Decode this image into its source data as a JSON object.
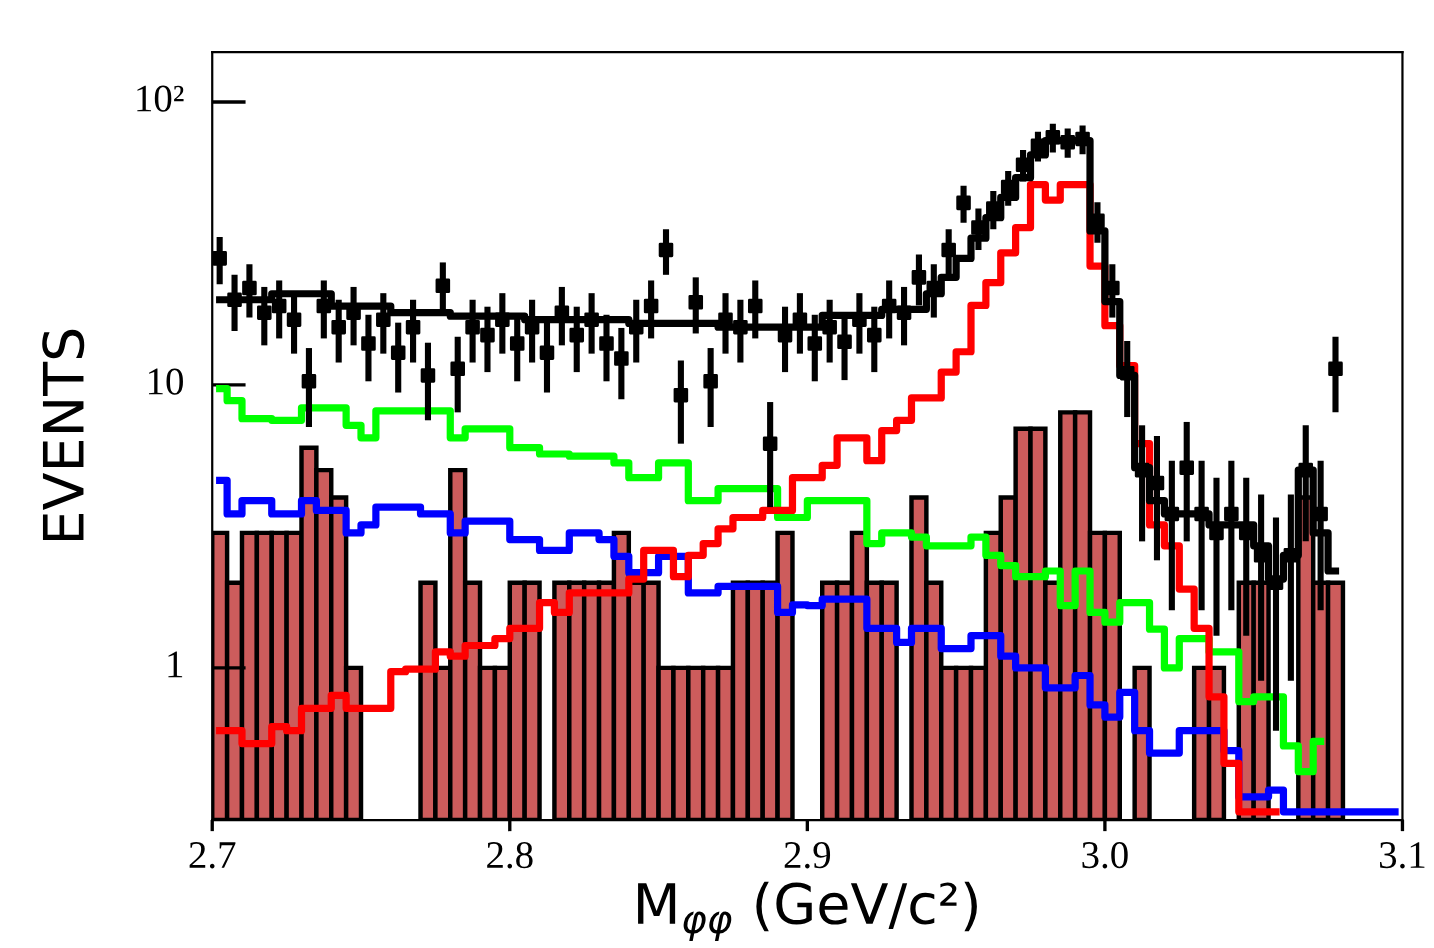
{
  "chart_data": {
    "type": "histogram",
    "xlabel": "M$_{φφ}$ (GeV/c²)",
    "ylabel": "EVENTS",
    "bins": [
      2.7,
      2.705,
      2.71,
      2.715,
      2.72,
      2.725,
      2.73,
      2.735,
      2.74,
      2.745,
      2.75,
      2.755,
      2.76,
      2.765,
      2.77,
      2.775,
      2.78,
      2.785,
      2.79,
      2.795,
      2.8,
      2.805,
      2.81,
      2.815,
      2.82,
      2.825,
      2.83,
      2.835,
      2.84,
      2.845,
      2.85,
      2.855,
      2.86,
      2.865,
      2.87,
      2.875,
      2.88,
      2.885,
      2.89,
      2.895,
      2.9,
      2.905,
      2.91,
      2.915,
      2.92,
      2.925,
      2.93,
      2.935,
      2.94,
      2.945,
      2.95,
      2.955,
      2.96,
      2.965,
      2.97,
      2.975,
      2.98,
      2.985,
      2.99,
      2.995,
      3.0,
      3.005,
      3.01,
      3.015,
      3.02,
      3.025,
      3.03,
      3.035,
      3.04,
      3.045,
      3.05,
      3.055,
      3.06,
      3.065,
      3.07,
      3.075,
      3.08,
      3.085,
      3.09,
      3.095,
      3.1
    ],
    "series": [
      {
        "color": "#cd5c5c",
        "values": [
          3,
          2,
          3,
          3,
          3,
          3,
          6,
          5,
          4,
          1,
          null,
          null,
          null,
          null,
          2,
          1,
          5,
          2,
          1,
          1,
          2,
          2,
          null,
          2,
          2,
          2,
          2,
          3,
          2,
          2,
          1,
          1,
          1,
          1,
          1,
          2,
          2,
          2,
          3,
          null,
          null,
          2,
          2,
          3,
          2,
          2,
          null,
          4,
          2,
          1,
          1,
          1,
          3,
          4,
          7,
          7,
          2,
          8,
          8,
          3,
          3,
          null,
          1,
          null,
          null,
          null,
          1,
          1,
          null,
          2,
          2,
          null,
          null,
          4,
          2,
          2,
          null,
          null,
          null,
          null
        ]
      },
      {
        "type": "step",
        "color": "#00ff00",
        "x": [
          2.7025,
          2.7075,
          2.7125,
          2.7175,
          2.7225,
          2.7275,
          2.7325,
          2.7375,
          2.7425,
          2.7475,
          2.7525,
          2.7575,
          2.7625,
          2.7675,
          2.7725,
          2.7775,
          2.7825,
          2.7875,
          2.7925,
          2.7975,
          2.8025,
          2.8075,
          2.8125,
          2.8175,
          2.8225,
          2.8275,
          2.8325,
          2.8375,
          2.8425,
          2.8475,
          2.8525,
          2.8575,
          2.8625,
          2.8675,
          2.8725,
          2.8775,
          2.8825,
          2.8875,
          2.8925,
          2.8975,
          2.9025,
          2.9075,
          2.9125,
          2.9175,
          2.9225,
          2.9275,
          2.9325,
          2.9375,
          2.9425,
          2.9475,
          2.9525,
          2.9575,
          2.9625,
          2.9675,
          2.9725,
          2.9775,
          2.9825,
          2.9875,
          2.9925,
          2.9975,
          3.0025,
          3.0075,
          3.0125,
          3.0175,
          3.0225,
          3.0275,
          3.0325,
          3.0375,
          3.0425,
          3.0475,
          3.0525,
          3.0575,
          3.0625,
          3.0675,
          3.0725
        ],
        "values": [
          9.7,
          8.8,
          7.6,
          7.6,
          7.5,
          7.5,
          8.3,
          8.3,
          8.3,
          7.2,
          6.5,
          8.1,
          8.1,
          8.1,
          8.1,
          8.1,
          6.5,
          7.0,
          7.0,
          7.0,
          6.0,
          6.0,
          5.7,
          5.7,
          5.6,
          5.6,
          5.6,
          5.3,
          4.7,
          4.7,
          5.3,
          5.3,
          3.9,
          3.9,
          4.3,
          4.3,
          4.3,
          4.3,
          3.4,
          3.4,
          3.9,
          3.9,
          3.9,
          3.9,
          2.75,
          3.0,
          3.0,
          2.9,
          2.7,
          2.7,
          2.7,
          2.9,
          2.5,
          2.3,
          2.1,
          2.1,
          2.2,
          1.66,
          2.2,
          1.57,
          1.45,
          1.7,
          1.7,
          1.37,
          1.0,
          1.27,
          1.27,
          1.14,
          1.14,
          0.76,
          0.79,
          0.79,
          0.53,
          0.43,
          0.55
        ]
      },
      {
        "type": "step",
        "color": "#0000ff",
        "x": [
          2.7025,
          2.7075,
          2.7125,
          2.7175,
          2.7225,
          2.7275,
          2.7325,
          2.7375,
          2.7425,
          2.7475,
          2.7525,
          2.7575,
          2.7625,
          2.7675,
          2.7725,
          2.7775,
          2.7825,
          2.7875,
          2.7925,
          2.7975,
          2.8025,
          2.8075,
          2.8125,
          2.8175,
          2.8225,
          2.8275,
          2.8325,
          2.8375,
          2.8425,
          2.8475,
          2.8525,
          2.8575,
          2.8625,
          2.8675,
          2.8725,
          2.8775,
          2.8825,
          2.8875,
          2.8925,
          2.8975,
          2.9025,
          2.9075,
          2.9125,
          2.9175,
          2.9225,
          2.9275,
          2.9325,
          2.9375,
          2.9425,
          2.9475,
          2.9525,
          2.9575,
          2.9625,
          2.9675,
          2.9725,
          2.9775,
          2.9825,
          2.9875,
          2.9925,
          2.9975,
          3.0025,
          3.0075,
          3.0125,
          3.0175,
          3.0225,
          3.0275,
          3.0325,
          3.0375,
          3.0425,
          3.0475,
          3.0525,
          3.0575,
          3.0625,
          3.0675,
          3.0725,
          3.0775,
          3.0825,
          3.0875,
          3.0925,
          3.0975
        ],
        "values": [
          4.6,
          3.5,
          3.9,
          3.9,
          3.5,
          3.5,
          3.9,
          3.6,
          3.6,
          3.0,
          3.2,
          3.7,
          3.7,
          3.7,
          3.5,
          3.5,
          3.0,
          3.3,
          3.3,
          3.3,
          2.84,
          2.84,
          2.6,
          2.6,
          3.0,
          3.0,
          2.84,
          2.48,
          2.17,
          2.17,
          2.48,
          2.48,
          1.84,
          1.84,
          1.94,
          1.94,
          1.94,
          1.94,
          1.57,
          1.67,
          1.66,
          1.75,
          1.75,
          1.75,
          1.38,
          1.38,
          1.23,
          1.38,
          1.38,
          1.17,
          1.17,
          1.3,
          1.3,
          1.1,
          1.0,
          1.0,
          0.85,
          0.85,
          0.94,
          0.74,
          0.67,
          0.82,
          0.6,
          0.5,
          0.5,
          0.6,
          0.6,
          0.6,
          0.51,
          0.35,
          0.35,
          0.37,
          0.31,
          0.31,
          0.31,
          0.31,
          0.31,
          0.31,
          0.31,
          0.31
        ]
      },
      {
        "type": "step",
        "color": "#ff0000",
        "x": [
          2.7025,
          2.7075,
          2.7125,
          2.7175,
          2.7225,
          2.7275,
          2.7325,
          2.7375,
          2.7425,
          2.7475,
          2.7525,
          2.7575,
          2.7625,
          2.7675,
          2.7725,
          2.7775,
          2.7825,
          2.7875,
          2.7925,
          2.7975,
          2.8025,
          2.8075,
          2.8125,
          2.8175,
          2.8225,
          2.8275,
          2.8325,
          2.8375,
          2.8425,
          2.8475,
          2.8525,
          2.8575,
          2.8625,
          2.8675,
          2.8725,
          2.8775,
          2.8825,
          2.8875,
          2.8925,
          2.8975,
          2.9025,
          2.9075,
          2.9125,
          2.9175,
          2.9225,
          2.9275,
          2.9325,
          2.9375,
          2.9425,
          2.9475,
          2.9525,
          2.9575,
          2.9625,
          2.9675,
          2.9725,
          2.9775,
          2.9825,
          2.9875,
          2.9925,
          2.9975,
          3.0025,
          3.0075,
          3.0125,
          3.0175,
          3.0225,
          3.0275,
          3.0325,
          3.0375,
          3.0425,
          3.0475,
          3.0525,
          3.0575
        ],
        "values": [
          0.6,
          0.6,
          0.54,
          0.54,
          0.62,
          0.6,
          0.72,
          0.72,
          0.8,
          0.72,
          0.72,
          0.72,
          0.97,
          0.99,
          0.99,
          1.14,
          1.1,
          1.2,
          1.2,
          1.27,
          1.38,
          1.38,
          1.7,
          1.57,
          1.84,
          1.84,
          1.84,
          1.84,
          2.06,
          2.6,
          2.6,
          2.1,
          2.5,
          2.75,
          3.1,
          3.4,
          3.4,
          3.6,
          3.6,
          4.7,
          4.7,
          5.2,
          6.5,
          6.5,
          5.4,
          6.9,
          7.5,
          9.0,
          9.0,
          11.1,
          13.1,
          19.1,
          23,
          29.3,
          36,
          51,
          45,
          51,
          51,
          26.3,
          16.2,
          11.7,
          6.2,
          3.2,
          2.7,
          1.9,
          1.38,
          0.79,
          0.46,
          0.31,
          0.31,
          0.31
        ]
      },
      {
        "type": "step",
        "color": "#000000",
        "x": [
          2.7025,
          2.7075,
          2.7125,
          2.7175,
          2.7225,
          2.7275,
          2.7325,
          2.7375,
          2.7425,
          2.7475,
          2.7525,
          2.7575,
          2.7625,
          2.7675,
          2.7725,
          2.7775,
          2.7825,
          2.7875,
          2.7925,
          2.7975,
          2.8025,
          2.8075,
          2.8125,
          2.8175,
          2.8225,
          2.8275,
          2.8325,
          2.8375,
          2.8425,
          2.8475,
          2.8525,
          2.8575,
          2.8625,
          2.8675,
          2.8725,
          2.8775,
          2.8825,
          2.8875,
          2.8925,
          2.8975,
          2.9025,
          2.9075,
          2.9125,
          2.9175,
          2.9225,
          2.9275,
          2.9325,
          2.9375,
          2.9425,
          2.9475,
          2.9525,
          2.9575,
          2.9625,
          2.9675,
          2.9725,
          2.9775,
          2.9825,
          2.9875,
          2.9925,
          2.9975,
          3.0025,
          3.0075,
          3.0125,
          3.0175,
          3.0225,
          3.0275,
          3.0325,
          3.0375,
          3.0425,
          3.0475,
          3.0525,
          3.0575,
          3.0625,
          3.0675,
          3.0725,
          3.0775
        ],
        "values": [
          20,
          20,
          20,
          20,
          21,
          21,
          21,
          21,
          19,
          19,
          19,
          19,
          18,
          18,
          18,
          18,
          17.5,
          17.5,
          17.5,
          17.5,
          17.5,
          17,
          17,
          17,
          17,
          17,
          17,
          17,
          16.5,
          16.5,
          16.5,
          16.5,
          16.5,
          16.5,
          16,
          16,
          16,
          16,
          16,
          16,
          16,
          17.6,
          17.6,
          17.6,
          17.6,
          18.5,
          18.5,
          18.5,
          21,
          24,
          28,
          33,
          39,
          46,
          54,
          65,
          73,
          73,
          73,
          35,
          19.7,
          10.8,
          5.1,
          3.9,
          3.5,
          3.5,
          3.5,
          3.2,
          3.2,
          3.2,
          2.7,
          2.06,
          2.5,
          5,
          3,
          2.2
        ]
      },
      {
        "type": "scatter",
        "color": "#000000",
        "marker": "square",
        "x": [
          2.7025,
          2.7075,
          2.7125,
          2.7175,
          2.7225,
          2.7275,
          2.7325,
          2.7375,
          2.7425,
          2.7475,
          2.7525,
          2.7575,
          2.7625,
          2.7675,
          2.7725,
          2.7775,
          2.7825,
          2.7875,
          2.7925,
          2.7975,
          2.8025,
          2.8075,
          2.8125,
          2.8175,
          2.8225,
          2.8275,
          2.8325,
          2.8375,
          2.8425,
          2.8475,
          2.8525,
          2.8575,
          2.8625,
          2.8675,
          2.8725,
          2.8775,
          2.8825,
          2.8875,
          2.8925,
          2.8975,
          2.9025,
          2.9075,
          2.9125,
          2.9175,
          2.9225,
          2.9275,
          2.9325,
          2.9375,
          2.9425,
          2.9475,
          2.9525,
          2.9575,
          2.9625,
          2.9675,
          2.9725,
          2.9775,
          2.9825,
          2.9875,
          2.9925,
          2.9975,
          3.0025,
          3.0075,
          3.0125,
          3.0175,
          3.0225,
          3.0275,
          3.0325,
          3.0375,
          3.0425,
          3.0475,
          3.0525,
          3.0575,
          3.0625,
          3.0675,
          3.0725,
          3.0775
        ],
        "values": [
          28,
          20,
          22,
          18,
          19,
          17,
          10.3,
          19,
          16,
          18,
          14,
          17,
          13,
          16,
          10.8,
          22.4,
          11.4,
          16,
          15,
          17,
          14,
          16,
          13,
          18,
          15,
          17,
          14,
          12.4,
          16,
          19,
          30,
          9.2,
          19.6,
          10.3,
          17,
          16,
          19,
          6.2,
          15,
          17,
          14,
          16,
          14.2,
          17,
          15,
          19,
          18,
          24,
          22,
          30,
          44,
          36,
          42,
          50,
          60,
          70,
          75,
          72,
          74,
          38,
          22,
          11,
          5,
          4.5,
          3.5,
          5.1,
          3.5,
          3.0,
          3.5,
          3.0,
          2.5,
          2.0,
          2.5,
          5.0,
          3.5,
          11.4
        ],
        "errors": [
          5.3,
          4.5,
          4.7,
          4.2,
          4.4,
          4.1,
          3.2,
          4.4,
          4,
          4.2,
          3.7,
          4.1,
          3.6,
          4,
          3.3,
          4.7,
          3.4,
          4,
          3.9,
          4.1,
          3.7,
          4,
          3.6,
          4.2,
          3.9,
          4.1,
          3.7,
          3.5,
          4,
          4.4,
          5.5,
          3,
          4.4,
          3.2,
          4.1,
          4,
          4.4,
          2.5,
          3.9,
          4.1,
          3.7,
          4,
          3.8,
          4.1,
          3.9,
          4.4,
          4.2,
          4.9,
          4.7,
          5.5,
          6.6,
          6,
          6.5,
          7,
          7.7,
          8.4,
          8.7,
          8.5,
          8.6,
          6.2,
          4.7,
          3.3,
          2.2,
          2.1,
          1.9,
          2.3,
          1.9,
          1.7,
          1.9,
          1.7,
          1.6,
          1.4,
          1.6,
          2.2,
          1.9,
          3.4
        ]
      }
    ],
    "log": "y",
    "xlim": [
      2.7,
      3.1
    ],
    "ylim": [
      0.29,
      150
    ],
    "xticks": [
      2.7,
      2.8,
      2.9,
      {
        "value": 3.0,
        "label": "3.0"
      },
      3.1
    ],
    "yticks": [
      1,
      10,
      {
        "value": 100,
        "label": "10²"
      }
    ],
    "grid": false,
    "legend": false
  }
}
